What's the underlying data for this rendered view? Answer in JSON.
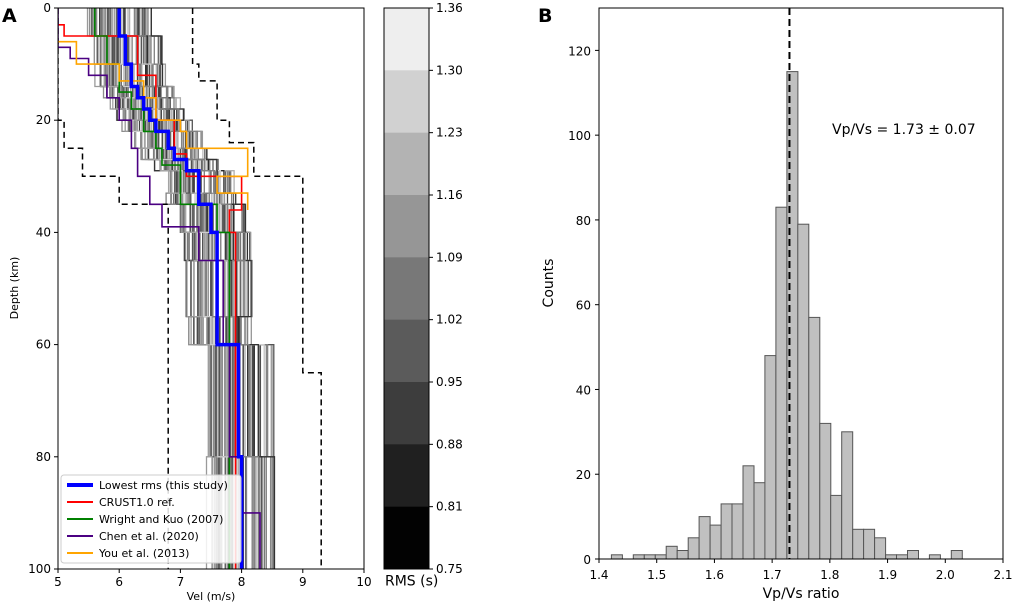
{
  "figure": {
    "panel_a_label": "A",
    "panel_b_label": "B"
  },
  "chart_data": [
    {
      "type": "line",
      "panel": "A",
      "title": "",
      "xlabel": "Vel (m/s)",
      "ylabel": "Depth (km)",
      "xlim": [
        5,
        10
      ],
      "ylim": [
        100,
        0
      ],
      "xticks": [
        "5",
        "6",
        "7",
        "8",
        "9",
        "10"
      ],
      "yticks": [
        "0",
        "20",
        "40",
        "60",
        "80",
        "100"
      ],
      "colors": {
        "lowest": "#0000ff",
        "crust": "#ff0000",
        "wright": "#008000",
        "chen": "#4b0082",
        "you": "#ffa500",
        "bounds": "#000000",
        "ensemble": "#8a8a8a"
      },
      "legend": {
        "placement": "lower-left",
        "entries": [
          {
            "label": "Lowest rms (this study)",
            "series": "lowest"
          },
          {
            "label": "CRUST1.0 ref.",
            "series": "crust"
          },
          {
            "label": "Wright and Kuo (2007)",
            "series": "wright"
          },
          {
            "label": "Chen et al. (2020)",
            "series": "chen"
          },
          {
            "label": "You et al. (2013)",
            "series": "you"
          }
        ]
      },
      "series": [
        {
          "name": "lowest",
          "width": 3.5,
          "profile": [
            [
              0,
              6.0
            ],
            [
              5,
              6.1
            ],
            [
              10,
              6.2
            ],
            [
              14,
              6.3
            ],
            [
              16,
              6.4
            ],
            [
              18,
              6.5
            ],
            [
              20,
              6.6
            ],
            [
              22,
              6.8
            ],
            [
              25,
              6.9
            ],
            [
              27,
              7.1
            ],
            [
              29,
              7.3
            ],
            [
              33,
              7.3
            ],
            [
              35,
              7.5
            ],
            [
              40,
              7.6
            ],
            [
              45,
              7.6
            ],
            [
              55,
              7.6
            ],
            [
              60,
              7.95
            ],
            [
              80,
              8.0
            ]
          ]
        },
        {
          "name": "crust",
          "width": 1.6,
          "profile": [
            [
              0,
              4.9
            ],
            [
              3,
              5.1
            ],
            [
              5,
              6.3
            ],
            [
              12,
              6.6
            ],
            [
              20,
              6.9
            ],
            [
              26,
              7.1
            ],
            [
              30,
              8.0
            ],
            [
              36,
              7.8
            ],
            [
              40,
              7.9
            ],
            [
              60,
              7.9
            ]
          ]
        },
        {
          "name": "wright",
          "width": 1.6,
          "profile": [
            [
              0,
              5.6
            ],
            [
              5,
              5.8
            ],
            [
              10,
              6.0
            ],
            [
              15,
              6.2
            ],
            [
              18,
              6.4
            ],
            [
              22,
              6.6
            ],
            [
              25,
              6.7
            ],
            [
              28,
              7.0
            ],
            [
              31,
              7.0
            ],
            [
              35,
              7.6
            ],
            [
              40,
              7.8
            ],
            [
              60,
              7.8
            ]
          ]
        },
        {
          "name": "chen",
          "width": 1.6,
          "profile": [
            [
              0,
              5.0
            ],
            [
              7,
              5.2
            ],
            [
              9,
              5.5
            ],
            [
              12,
              5.8
            ],
            [
              16,
              6.0
            ],
            [
              20,
              6.2
            ],
            [
              25,
              6.3
            ],
            [
              30,
              6.5
            ],
            [
              35,
              6.7
            ],
            [
              39,
              7.3
            ],
            [
              45,
              7.7
            ],
            [
              60,
              7.8
            ],
            [
              80,
              8.0
            ],
            [
              90,
              8.3
            ]
          ]
        },
        {
          "name": "you",
          "width": 1.6,
          "profile": [
            [
              0,
              4.9
            ],
            [
              6,
              5.3
            ],
            [
              10,
              6.0
            ],
            [
              13,
              6.4
            ],
            [
              16,
              6.6
            ],
            [
              20,
              7.0
            ],
            [
              22,
              7.1
            ],
            [
              25,
              8.1
            ],
            [
              30,
              7.6
            ],
            [
              33,
              8.1
            ],
            [
              36,
              8.1
            ]
          ]
        }
      ],
      "bounds": {
        "lower": [
          [
            0,
            5.0
          ],
          [
            15,
            5.0
          ],
          [
            20,
            5.1
          ],
          [
            25,
            5.4
          ],
          [
            30,
            6.0
          ],
          [
            35,
            6.8
          ],
          [
            60,
            6.8
          ],
          [
            100,
            6.8
          ]
        ],
        "upper": [
          [
            0,
            7.2
          ],
          [
            10,
            7.3
          ],
          [
            13,
            7.6
          ],
          [
            20,
            7.8
          ],
          [
            24,
            8.2
          ],
          [
            30,
            9.0
          ],
          [
            60,
            9.0
          ],
          [
            65,
            9.3
          ],
          [
            100,
            9.3
          ]
        ]
      },
      "colorbar": {
        "label": "RMS (s)",
        "ticks": [
          "1.36",
          "1.30",
          "1.23",
          "1.16",
          "1.09",
          "1.02",
          "0.95",
          "0.88",
          "0.81",
          "0.75"
        ],
        "min": 0.75,
        "max": 1.36
      }
    },
    {
      "type": "bar",
      "panel": "B",
      "title": "",
      "xlabel": "Vp/Vs ratio",
      "ylabel": "Counts",
      "xlim": [
        1.4,
        2.1
      ],
      "ylim": [
        0,
        130
      ],
      "xticks": [
        "1.4",
        "1.5",
        "1.6",
        "1.7",
        "1.8",
        "1.9",
        "2.0",
        "2.1"
      ],
      "yticks": [
        "0",
        "20",
        "40",
        "60",
        "80",
        "100",
        "120"
      ],
      "bar_color": "#c0c0c0",
      "edge_color": "#555555",
      "bin_width": 0.019,
      "bins": [
        {
          "x": 1.431,
          "count": 1
        },
        {
          "x": 1.469,
          "count": 1
        },
        {
          "x": 1.488,
          "count": 1
        },
        {
          "x": 1.507,
          "count": 1
        },
        {
          "x": 1.526,
          "count": 3
        },
        {
          "x": 1.545,
          "count": 2
        },
        {
          "x": 1.564,
          "count": 5
        },
        {
          "x": 1.583,
          "count": 10
        },
        {
          "x": 1.602,
          "count": 8
        },
        {
          "x": 1.621,
          "count": 13
        },
        {
          "x": 1.64,
          "count": 13
        },
        {
          "x": 1.659,
          "count": 22
        },
        {
          "x": 1.678,
          "count": 18
        },
        {
          "x": 1.697,
          "count": 48
        },
        {
          "x": 1.716,
          "count": 83
        },
        {
          "x": 1.735,
          "count": 115
        },
        {
          "x": 1.754,
          "count": 79
        },
        {
          "x": 1.773,
          "count": 57
        },
        {
          "x": 1.792,
          "count": 32
        },
        {
          "x": 1.811,
          "count": 15
        },
        {
          "x": 1.83,
          "count": 30
        },
        {
          "x": 1.849,
          "count": 7
        },
        {
          "x": 1.868,
          "count": 7
        },
        {
          "x": 1.887,
          "count": 5
        },
        {
          "x": 1.906,
          "count": 1
        },
        {
          "x": 1.925,
          "count": 1
        },
        {
          "x": 1.944,
          "count": 2
        },
        {
          "x": 1.982,
          "count": 1
        },
        {
          "x": 2.02,
          "count": 2
        }
      ],
      "mean_line": 1.73,
      "annotation": "Vp/Vs = 1.73 ± 0.07"
    }
  ]
}
